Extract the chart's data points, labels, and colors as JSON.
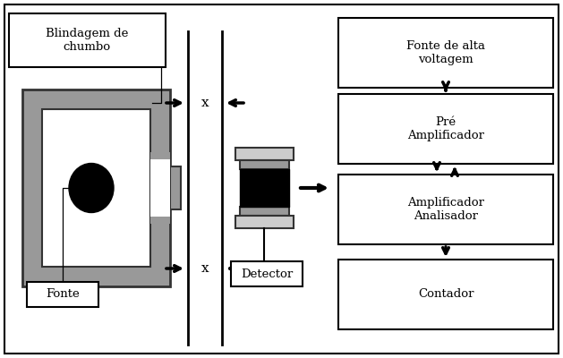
{
  "bg_color": "#ffffff",
  "gray_dark": "#333333",
  "gray_mid": "#999999",
  "gray_light": "#cccccc",
  "labels": {
    "blindagem": "Blindagem de\nchumbo",
    "fonte": "Fonte",
    "detector": "Detector",
    "alta_voltagem": "Fonte de alta\nvoltagem",
    "pre_amp": "Pré\nAmplificador",
    "amp_anal": "Amplificador\nAnalisador",
    "contador": "Contador"
  },
  "fontsize": 9.5,
  "fig_w": 6.29,
  "fig_h": 4.0,
  "dpi": 100
}
